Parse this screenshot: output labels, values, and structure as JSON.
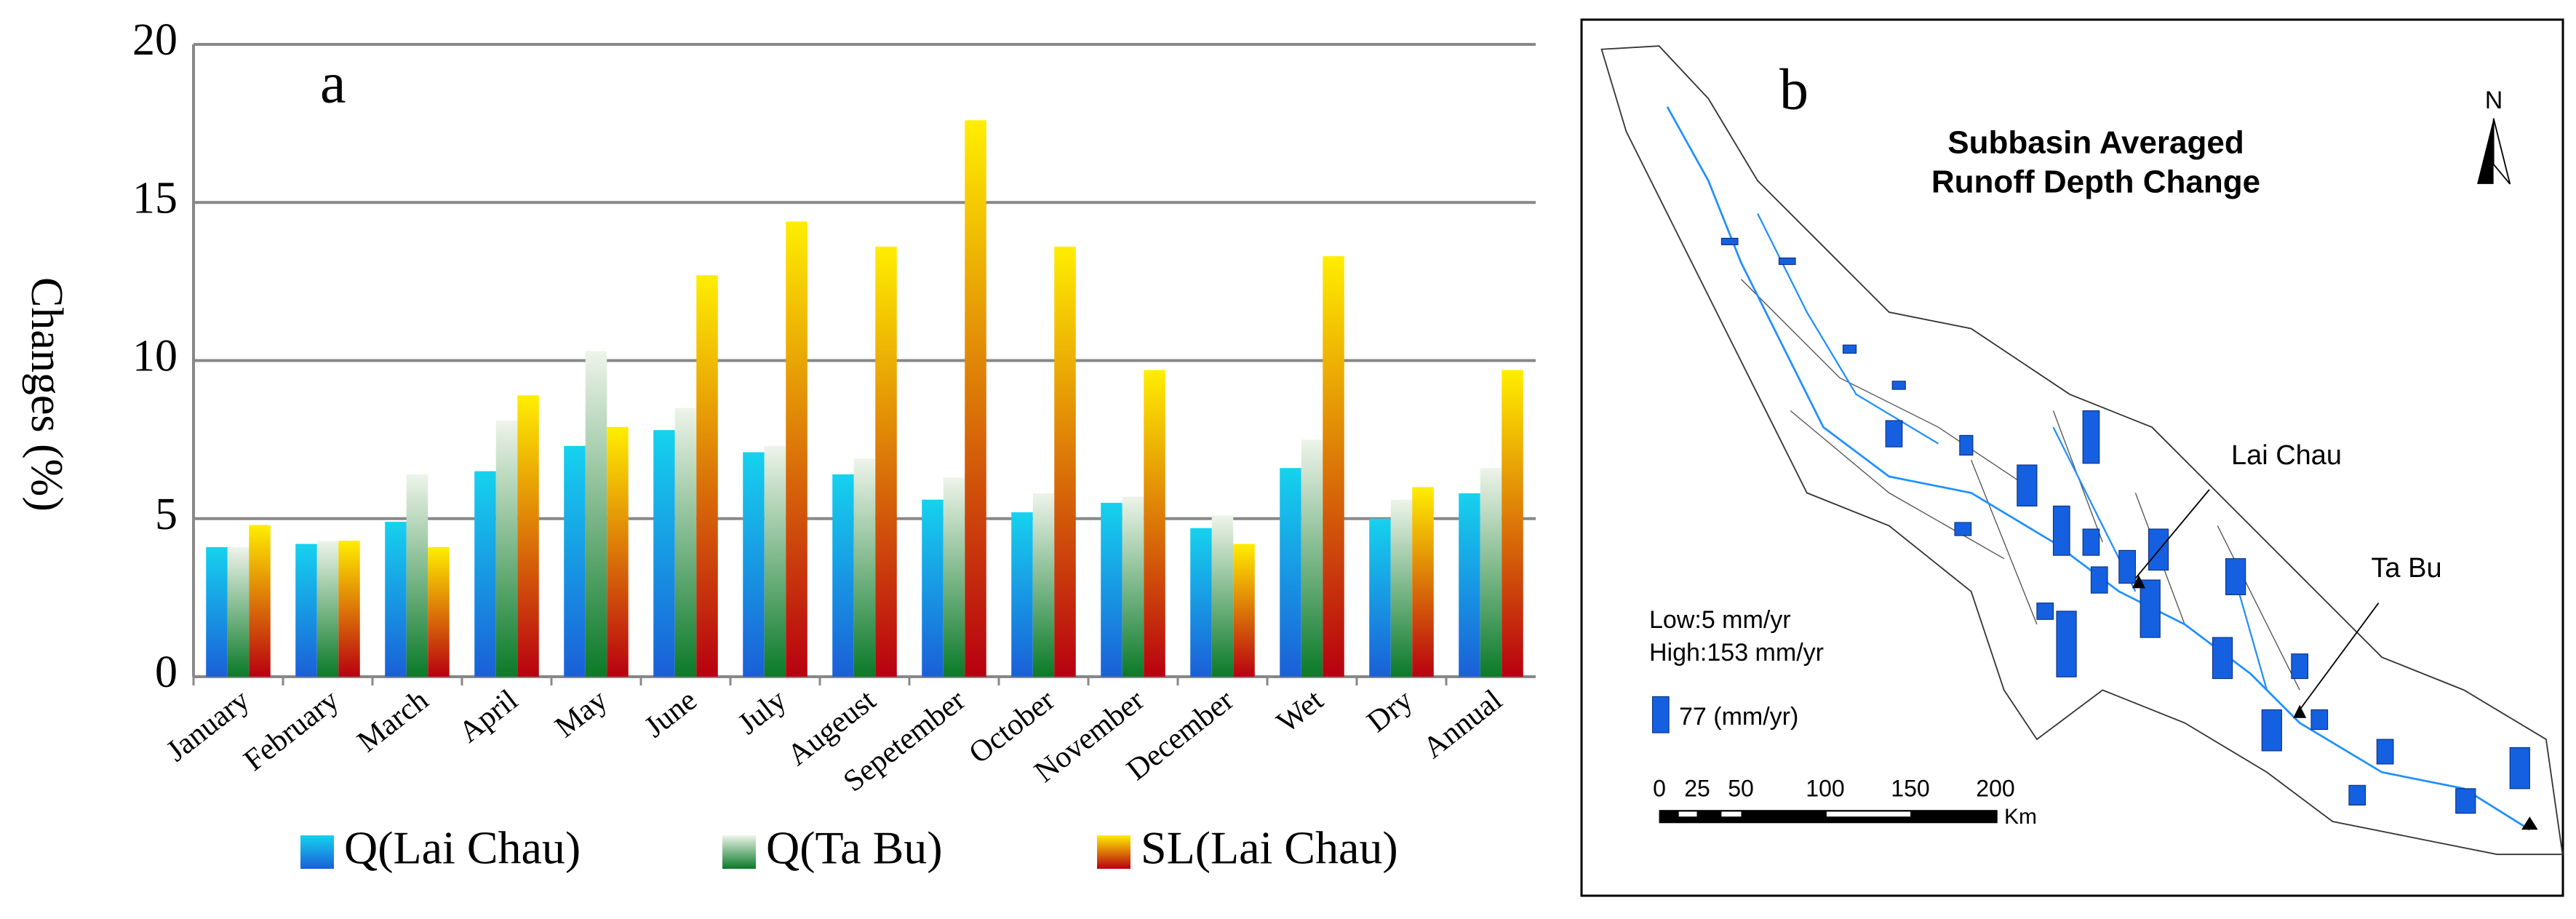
{
  "chart_data": {
    "type": "bar",
    "panel_label": "a",
    "ylabel": "Changes (%)",
    "categories": [
      "January",
      "February",
      "March",
      "April",
      "May",
      "June",
      "July",
      "Augeust",
      "Sepetember",
      "October",
      "November",
      "December",
      "Wet",
      "Dry",
      "Annual"
    ],
    "series": [
      {
        "name": "Q(Lai Chau)",
        "colors": [
          "#16d2ee",
          "#1a5fd8"
        ],
        "values": [
          4.1,
          4.2,
          4.9,
          6.5,
          7.3,
          7.8,
          7.1,
          6.4,
          5.6,
          5.2,
          5.5,
          4.7,
          6.6,
          5.0,
          5.8
        ]
      },
      {
        "name": "Q(Ta Bu)",
        "colors": [
          "#eef4ea",
          "#0a7a28"
        ],
        "values": [
          4.1,
          4.3,
          6.4,
          8.1,
          10.3,
          8.5,
          7.3,
          6.9,
          6.3,
          5.8,
          5.7,
          5.1,
          7.5,
          5.6,
          6.6
        ]
      },
      {
        "name": "SL(Lai Chau)",
        "colors": [
          "#ffee00",
          "#b80010"
        ],
        "values": [
          4.8,
          4.3,
          4.1,
          8.9,
          7.9,
          12.7,
          14.4,
          13.6,
          17.6,
          13.6,
          9.7,
          4.2,
          13.3,
          6.0,
          9.7
        ]
      }
    ],
    "ylim": [
      0,
      20
    ],
    "yticks": [
      0,
      5,
      10,
      15,
      20
    ],
    "grid": true
  },
  "map": {
    "panel_label": "b",
    "title": [
      "Subbasin Averaged",
      "Runoff Depth Change"
    ],
    "north": "N",
    "stations": [
      "Lai Chau",
      "Ta Bu"
    ],
    "legend": [
      "Low:5 mm/yr",
      "High:153 mm/yr",
      "77 (mm/yr)"
    ],
    "scale_labels": [
      "0",
      "25",
      "50",
      "100",
      "150",
      "200"
    ],
    "scale_unit": "Km"
  }
}
